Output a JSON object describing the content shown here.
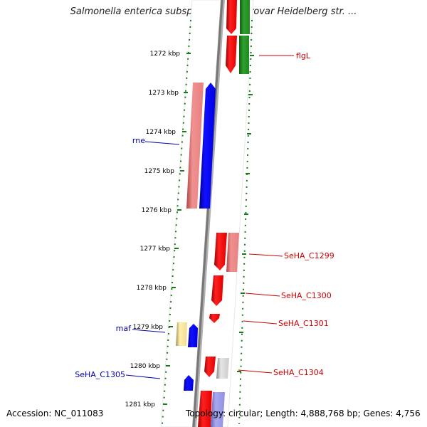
{
  "title": "Salmonella enterica subsp. enterica serovar Heidelberg str. ...",
  "scale_labels": [
    "1272 kbp",
    "1273 kbp",
    "1274 kbp",
    "1275 kbp",
    "1276 kbp",
    "1277 kbp",
    "1278 kbp",
    "1279 kbp",
    "1280 kbp",
    "1281 kbp"
  ],
  "gene_labels": {
    "flgL": "flgL",
    "rne": "rne",
    "maf": "maf",
    "SeHA_C1299": "SeHA_C1299",
    "SeHA_C1300": "SeHA_C1300",
    "SeHA_C1301": "SeHA_C1301",
    "SeHA_C1304": "SeHA_C1304",
    "SeHA_C1305": "SeHA_C1305"
  },
  "footer": {
    "accession": "Accession: NC_011083",
    "topology": "Topology: circular; Length: 4,888,768 bp; Genes: 4,756"
  },
  "colors": {
    "forward_cds": "#ff0000",
    "reverse_cds": "#0000ff",
    "forward_label": "#cc0000",
    "reverse_label": "#0000aa",
    "rna": "#228b22",
    "tick": "#1a7a1a",
    "backbone": "#888888"
  }
}
